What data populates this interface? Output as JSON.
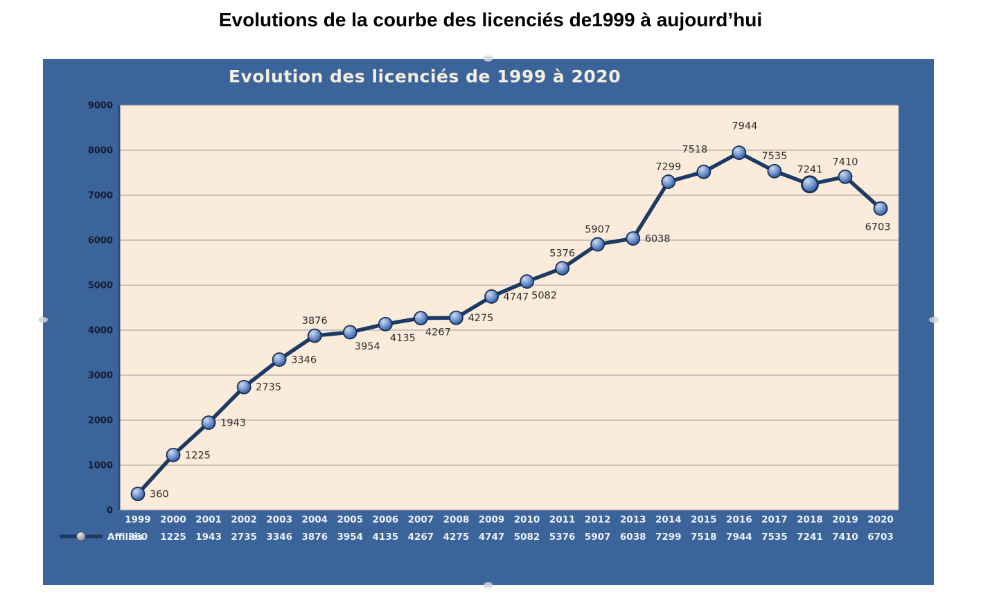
{
  "page": {
    "title": "Evolutions de la courbe des licenciés de1999 à aujourd’hui"
  },
  "chart": {
    "title": "Evolution des licenciés de 1999 à 2020",
    "legend_label": "Affiliés"
  },
  "chart_data": {
    "type": "line",
    "title": "Evolution des licenciés de 1999 à 2020",
    "categories": [
      "1999",
      "2000",
      "2001",
      "2002",
      "2003",
      "2004",
      "2005",
      "2006",
      "2007",
      "2008",
      "2009",
      "2010",
      "2011",
      "2012",
      "2013",
      "2014",
      "2015",
      "2016",
      "2017",
      "2018",
      "2019",
      "2020"
    ],
    "series": [
      {
        "name": "Affiliés",
        "values": [
          360,
          1225,
          1943,
          2735,
          3346,
          3876,
          3954,
          4135,
          4267,
          4275,
          4747,
          5082,
          5376,
          5907,
          6038,
          7299,
          7518,
          7944,
          7535,
          7241,
          7410,
          6703
        ]
      }
    ],
    "xlabel": "",
    "ylabel": "",
    "ylim": [
      0,
      9000
    ],
    "yticks": [
      0,
      1000,
      2000,
      3000,
      4000,
      5000,
      6000,
      7000,
      8000,
      9000
    ],
    "grid": true,
    "data_labels": true,
    "data_table_shown": true,
    "legend_position": "bottom-left",
    "label_placements": [
      "right",
      "right",
      "right",
      "right",
      "right",
      "above",
      "below-right",
      "below-right",
      "below-right",
      "right",
      "right",
      "below-right",
      "above",
      "above",
      "right",
      "above",
      "above-left",
      "above-far",
      "above",
      "above",
      "above",
      "below"
    ],
    "highlight_index": 19,
    "colors": {
      "panel_bg": "#3B649B",
      "plot_bg": "#FBEBDA",
      "gridline": "#9E9E9E",
      "axis_line": "#2B4A78",
      "line": "#1C3A63",
      "marker_fill": "#5F85C4",
      "marker_stroke": "#16304F",
      "y_tick_text": "#1B1B33",
      "data_label_text": "#2D2D2D",
      "x_tick_text": "#EDF0F5",
      "chart_title_text": "#F6EEDE",
      "page_title_text": "#000000"
    }
  }
}
